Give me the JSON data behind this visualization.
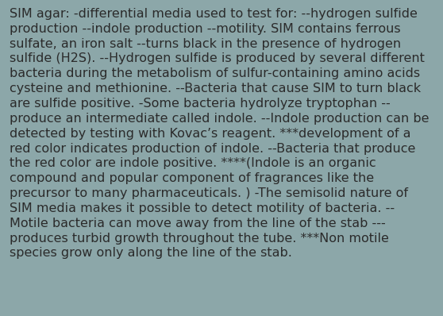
{
  "background_color": "#8ca7a9",
  "text_color": "#2b2b2b",
  "font_size": 11.5,
  "font_family": "DejaVu Sans",
  "figsize": [
    5.58,
    3.98
  ],
  "dpi": 100,
  "wrapped_text": "SIM agar: -differential media used to test for: --hydrogen sulfide\nproduction --indole production --motility. SIM contains ferrous\nsulfate, an iron salt --turns black in the presence of hydrogen\nsulfide (H2S). --Hydrogen sulfide is produced by several different\nbacteria during the metabolism of sulfur-containing amino acids\ncysteine and methionine. --Bacteria that cause SIM to turn black\nare sulfide positive. -Some bacteria hydrolyze tryptophan --\nproduce an intermediate called indole. --Indole production can be\ndetected by testing with Kovac’s reagent. ***development of a\nred color indicates production of indole. --Bacteria that produce\nthe red color are indole positive. ****(Indole is an organic\ncompound and popular component of fragrances like the\nprecursor to many pharmaceuticals. ) -The semisolid nature of\nSIM media makes it possible to detect motility of bacteria. --\nMotile bacteria can move away from the line of the stab ---\nproduces turbid growth throughout the tube. ***Non motile\nspecies grow only along the line of the stab."
}
